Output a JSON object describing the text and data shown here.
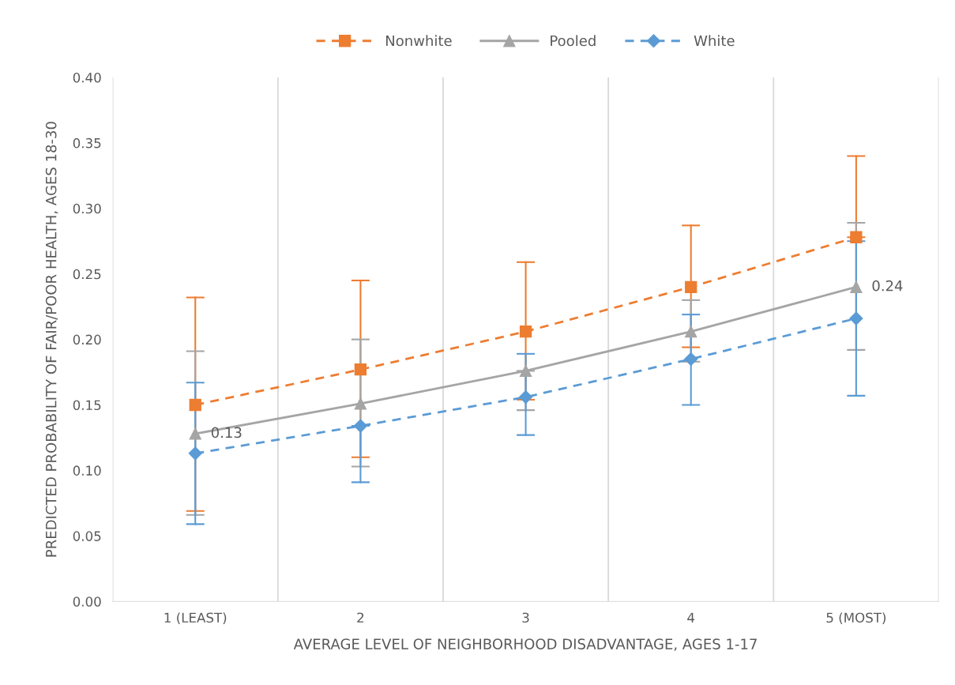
{
  "chart_data": {
    "type": "line",
    "xlabel": "AVERAGE LEVEL OF NEIGHBORHOOD DISADVANTAGE, AGES 1-17",
    "ylabel": "PREDICTED PROBABILITY OF FAIR/POOR HEALTH, AGES 18-30",
    "categories": [
      "1 (LEAST)",
      "2",
      "3",
      "4",
      "5 (MOST)"
    ],
    "series": [
      {
        "name": "Nonwhite",
        "color": "#ed7d31",
        "marker": "square",
        "line_style": "dashed",
        "values": [
          0.15,
          0.177,
          0.206,
          0.24,
          0.278
        ],
        "errors": [
          [
            0.069,
            0.232
          ],
          [
            0.11,
            0.245
          ],
          [
            0.154,
            0.259
          ],
          [
            0.194,
            0.287
          ],
          [
            0.278,
            0.34
          ]
        ]
      },
      {
        "name": "Pooled",
        "color": "#a5a5a5",
        "marker": "triangle",
        "line_style": "solid",
        "values": [
          0.128,
          0.151,
          0.176,
          0.206,
          0.24
        ],
        "errors": [
          [
            0.066,
            0.191
          ],
          [
            0.103,
            0.2
          ],
          [
            0.146,
            0.176
          ],
          [
            0.183,
            0.23
          ],
          [
            0.192,
            0.289
          ]
        ],
        "value_labels": [
          "0.13",
          null,
          null,
          null,
          "0.24"
        ]
      },
      {
        "name": "White",
        "color": "#5b9bd5",
        "marker": "diamond",
        "line_style": "dashed",
        "values": [
          0.113,
          0.134,
          0.156,
          0.185,
          0.216
        ],
        "errors": [
          [
            0.059,
            0.167
          ],
          [
            0.091,
            0.134
          ],
          [
            0.127,
            0.189
          ],
          [
            0.15,
            0.219
          ],
          [
            0.157,
            0.275
          ]
        ]
      }
    ],
    "ylim": [
      0,
      0.4
    ],
    "yticks": [
      {
        "value": 0,
        "label": "0.00"
      },
      {
        "value": 0.05,
        "label": "0.05"
      },
      {
        "value": 0.1,
        "label": "0.10"
      },
      {
        "value": 0.15,
        "label": "0.15"
      },
      {
        "value": 0.2,
        "label": "0.20"
      },
      {
        "value": 0.25,
        "label": "0.25"
      },
      {
        "value": 0.3,
        "label": "0.30"
      },
      {
        "value": 0.35,
        "label": "0.35"
      },
      {
        "value": 0.4,
        "label": "0.40"
      }
    ],
    "grid": "x",
    "legend": "top"
  }
}
